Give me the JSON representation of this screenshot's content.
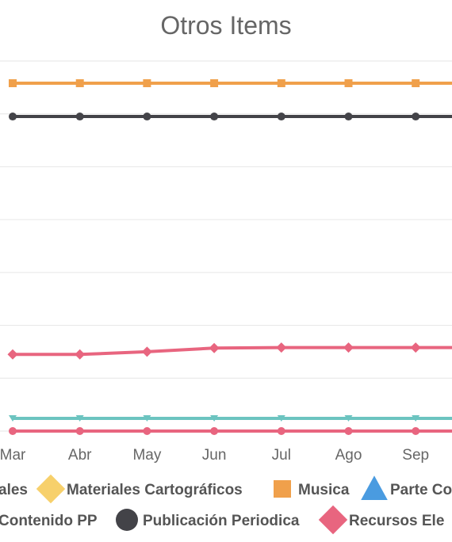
{
  "chart_data": {
    "type": "line",
    "title": "Otros Items",
    "xlabel": "",
    "ylabel": "",
    "categories": [
      "Mar",
      "Abr",
      "May",
      "Jun",
      "Jul",
      "Ago",
      "Sep"
    ],
    "ylim": [
      0,
      7
    ],
    "grid": true,
    "legend_position": "bottom",
    "series": [
      {
        "name": "Musica",
        "color": "#f0a04b",
        "marker": "square",
        "values": [
          6.58,
          6.58,
          6.58,
          6.58,
          6.58,
          6.58,
          6.58
        ]
      },
      {
        "name": "Publicación Periodica",
        "color": "#434348",
        "marker": "circle",
        "values": [
          5.95,
          5.95,
          5.95,
          5.95,
          5.95,
          5.95,
          5.95
        ]
      },
      {
        "name": "Recursos Ele",
        "color": "#e8657f",
        "marker": "diamond",
        "values": [
          1.45,
          1.45,
          1.5,
          1.57,
          1.58,
          1.58,
          1.58
        ]
      },
      {
        "name": "",
        "color": "#6cc4c0",
        "marker": "triangle-down",
        "values": [
          0.24,
          0.24,
          0.24,
          0.24,
          0.24,
          0.24,
          0.24
        ]
      },
      {
        "name": "",
        "color": "#e8657f",
        "marker": "circle",
        "values": [
          0.0,
          0.0,
          0.0,
          0.0,
          0.0,
          0.0,
          0.0
        ]
      }
    ],
    "legend": [
      {
        "label": "ales",
        "color": "#6cc4c0",
        "marker": "none"
      },
      {
        "label": "Materiales Cartográficos",
        "color": "#f7d06b",
        "marker": "diamond"
      },
      {
        "label": "Musica",
        "color": "#f0a04b",
        "marker": "square"
      },
      {
        "label": "Parte Co",
        "color": "#4a9be0",
        "marker": "triangle"
      },
      {
        "label": "Contenido PP",
        "color": "#6cc4c0",
        "marker": "none"
      },
      {
        "label": "Publicación Periodica",
        "color": "#434348",
        "marker": "circle"
      },
      {
        "label": "Recursos Ele",
        "color": "#e8657f",
        "marker": "diamond"
      }
    ]
  }
}
